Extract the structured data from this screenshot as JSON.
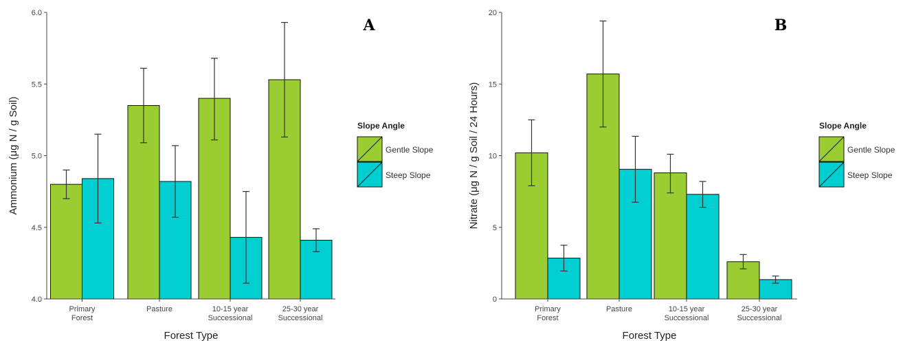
{
  "colors": {
    "gentle": "#9ACD32",
    "steep": "#00CED1",
    "outline": "#111111",
    "axis": "#444444"
  },
  "legend": {
    "title": "Slope Angle",
    "items": [
      {
        "label": "Gentle Slope",
        "color": "#9ACD32"
      },
      {
        "label": "Steep Slope",
        "color": "#00CED1"
      }
    ]
  },
  "chart_data": [
    {
      "type": "bar",
      "panel_label": "A",
      "xlabel": "Forest Type",
      "ylabel": "Ammonium (μg N / g Soil)",
      "categories": [
        [
          "Primary",
          "Forest"
        ],
        [
          "Pasture"
        ],
        [
          "10-15 year",
          "Successional"
        ],
        [
          "25-30 year",
          "Successional"
        ]
      ],
      "ylim": [
        4.0,
        6.0
      ],
      "yticks": [
        4.0,
        4.5,
        5.0,
        5.5,
        6.0
      ],
      "ytick_labels": [
        "4.0",
        "4.5",
        "5.0",
        "5.5",
        "6.0"
      ],
      "series": [
        {
          "name": "Gentle Slope",
          "values": [
            4.8,
            5.35,
            5.4,
            5.53
          ],
          "err_low": [
            4.7,
            5.09,
            5.11,
            5.13
          ],
          "err_high": [
            4.9,
            5.61,
            5.68,
            5.93
          ]
        },
        {
          "name": "Steep Slope",
          "values": [
            4.84,
            4.82,
            4.43,
            4.41
          ],
          "err_low": [
            4.53,
            4.57,
            4.11,
            4.33
          ],
          "err_high": [
            5.15,
            5.07,
            4.75,
            4.49
          ]
        }
      ]
    },
    {
      "type": "bar",
      "panel_label": "B",
      "xlabel": "Forest Type",
      "ylabel": "Nitrate (μg N / g Soil / 24 Hours)",
      "categories": [
        [
          "Primary",
          "Forest"
        ],
        [
          "Pasture"
        ],
        [
          "10-15 year",
          "Successional"
        ],
        [
          "25-30 year",
          "Successional"
        ]
      ],
      "ylim": [
        0,
        20
      ],
      "yticks": [
        0,
        5,
        10,
        15,
        20
      ],
      "ytick_labels": [
        "0",
        "5",
        "10",
        "15",
        "20"
      ],
      "series": [
        {
          "name": "Gentle Slope",
          "values": [
            10.2,
            15.7,
            8.8,
            2.6
          ],
          "err_low": [
            7.9,
            12.0,
            7.4,
            2.1
          ],
          "err_high": [
            12.5,
            19.4,
            10.1,
            3.1
          ]
        },
        {
          "name": "Steep Slope",
          "values": [
            2.85,
            9.05,
            7.3,
            1.35
          ],
          "err_low": [
            1.95,
            6.75,
            6.4,
            1.1
          ],
          "err_high": [
            3.75,
            11.35,
            8.2,
            1.6
          ]
        }
      ]
    }
  ]
}
